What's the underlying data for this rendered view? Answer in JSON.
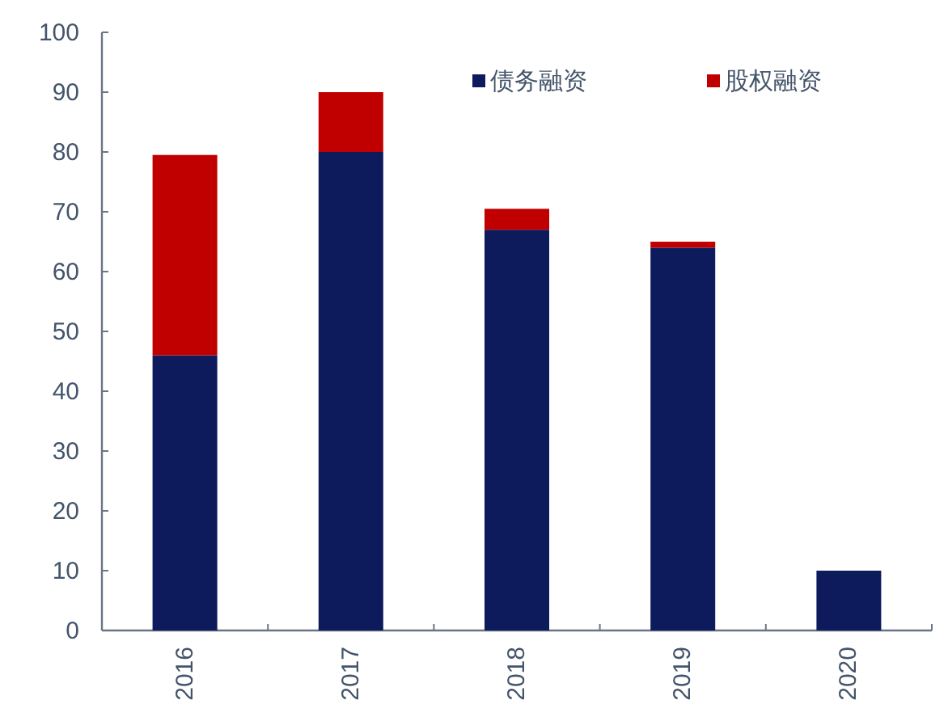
{
  "chart_data": {
    "type": "bar",
    "stacked": true,
    "categories": [
      "2016",
      "2017",
      "2018",
      "2019",
      "2020"
    ],
    "series": [
      {
        "name": "债务融资",
        "color": "#0d1a5c",
        "values": [
          46,
          80,
          67,
          64,
          10
        ]
      },
      {
        "name": "股权融资",
        "color": "#c00000",
        "values": [
          33.5,
          10,
          3.5,
          1,
          0
        ]
      }
    ],
    "ylim": [
      0,
      100
    ],
    "yticks": [
      0,
      10,
      20,
      30,
      40,
      50,
      60,
      70,
      80,
      90,
      100
    ],
    "grid": false,
    "legend": "top right"
  }
}
